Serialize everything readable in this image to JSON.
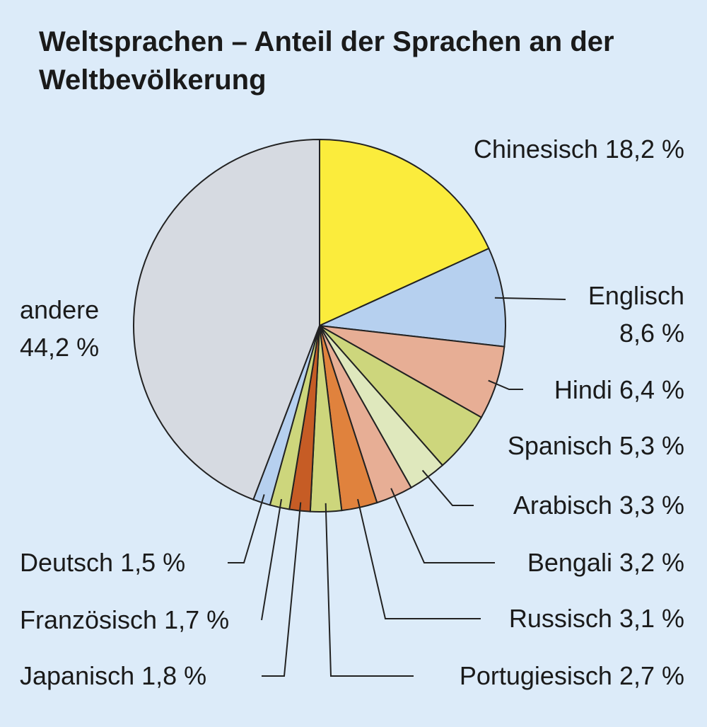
{
  "chart_data": {
    "type": "pie",
    "title": "Weltsprachen – Anteil der Sprachen an der Weltbevölkerung",
    "categories": [
      "Chinesisch",
      "Englisch",
      "Hindi",
      "Spanisch",
      "Arabisch",
      "Bengali",
      "Russisch",
      "Portugiesisch",
      "Japanisch",
      "Französisch",
      "Deutsch",
      "andere"
    ],
    "values": [
      18.2,
      8.6,
      6.4,
      5.3,
      3.3,
      3.2,
      3.1,
      2.7,
      1.8,
      1.7,
      1.5,
      44.2
    ],
    "value_labels": [
      "18,2 %",
      "8,6 %",
      "6,4 %",
      "5,3 %",
      "3,3 %",
      "3,2 %",
      "3,1 %",
      "2,7 %",
      "1,8 %",
      "1,7 %",
      "1,5 %",
      "44,2 %"
    ],
    "colors": [
      "#fbec3c",
      "#b6d0ef",
      "#e7ae95",
      "#cdd67c",
      "#dfe8bd",
      "#e7ae95",
      "#e0823d",
      "#cdd67c",
      "#c65c25",
      "#cdd67c",
      "#b6d0ef",
      "#d6dae1"
    ]
  }
}
